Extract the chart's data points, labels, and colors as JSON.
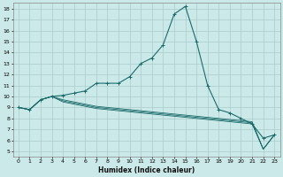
{
  "xlabel": "Humidex (Indice chaleur)",
  "bg_color": "#cce9e9",
  "grid_color": "#aacccc",
  "line_color": "#1a6b6b",
  "xlim": [
    -0.5,
    23.5
  ],
  "ylim": [
    4.5,
    18.5
  ],
  "xticks": [
    0,
    1,
    2,
    3,
    4,
    5,
    6,
    7,
    8,
    9,
    10,
    11,
    12,
    13,
    14,
    15,
    16,
    17,
    18,
    19,
    20,
    21,
    22,
    23
  ],
  "yticks": [
    5,
    6,
    7,
    8,
    9,
    10,
    11,
    12,
    13,
    14,
    15,
    16,
    17,
    18
  ],
  "series": [
    {
      "x": [
        0,
        1,
        2,
        3,
        4,
        5,
        6,
        7,
        8,
        9,
        10,
        11,
        12,
        13,
        14,
        15,
        16,
        17,
        18,
        19,
        20,
        21,
        22,
        23
      ],
      "y": [
        9.0,
        8.8,
        9.7,
        10.0,
        10.1,
        10.3,
        10.5,
        11.2,
        11.2,
        11.2,
        11.8,
        13.0,
        13.5,
        14.7,
        17.5,
        18.2,
        15.0,
        11.0,
        8.8,
        8.5,
        8.0,
        7.5,
        6.2,
        6.5
      ]
    },
    {
      "x": [
        0,
        1,
        2,
        3,
        4,
        5,
        6,
        7,
        8,
        9,
        10,
        11,
        12,
        13,
        14,
        15,
        16,
        17,
        18,
        19,
        20,
        21,
        22,
        23
      ],
      "y": [
        9.0,
        8.8,
        9.7,
        10.0,
        9.7,
        9.5,
        9.3,
        9.1,
        9.0,
        8.9,
        8.8,
        8.7,
        8.6,
        8.5,
        8.4,
        8.3,
        8.2,
        8.1,
        8.0,
        7.9,
        7.8,
        7.7,
        5.2,
        6.5
      ]
    },
    {
      "x": [
        0,
        1,
        2,
        3,
        4,
        5,
        6,
        7,
        8,
        9,
        10,
        11,
        12,
        13,
        14,
        15,
        16,
        17,
        18,
        19,
        20,
        21,
        22,
        23
      ],
      "y": [
        9.0,
        8.8,
        9.7,
        10.0,
        9.6,
        9.4,
        9.2,
        9.0,
        8.9,
        8.8,
        8.7,
        8.6,
        8.5,
        8.4,
        8.3,
        8.2,
        8.1,
        8.0,
        7.9,
        7.8,
        7.7,
        7.6,
        5.2,
        6.5
      ]
    },
    {
      "x": [
        0,
        1,
        2,
        3,
        4,
        5,
        6,
        7,
        8,
        9,
        10,
        11,
        12,
        13,
        14,
        15,
        16,
        17,
        18,
        19,
        20,
        21,
        22,
        23
      ],
      "y": [
        9.0,
        8.8,
        9.7,
        10.0,
        9.5,
        9.3,
        9.1,
        8.9,
        8.8,
        8.7,
        8.6,
        8.5,
        8.4,
        8.3,
        8.2,
        8.1,
        8.0,
        7.9,
        7.8,
        7.7,
        7.6,
        7.5,
        5.2,
        6.5
      ]
    }
  ]
}
